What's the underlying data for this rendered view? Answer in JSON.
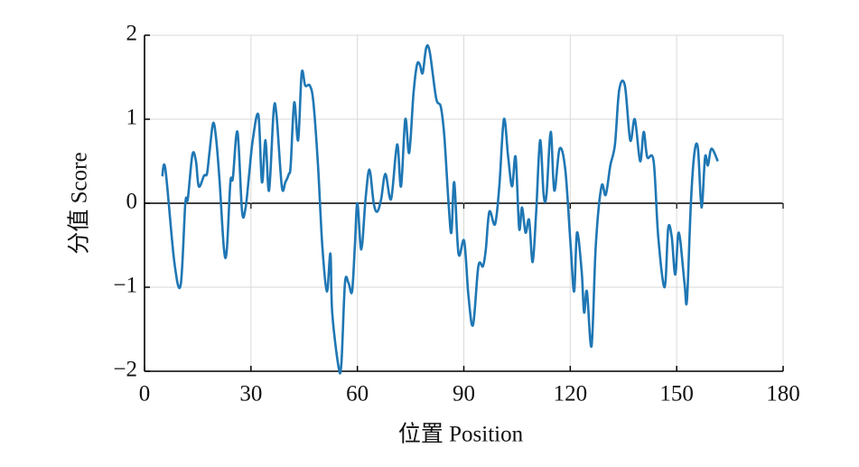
{
  "chart_data": {
    "type": "line",
    "x_label": "位置 Position",
    "y_label": "分值 Score",
    "x": [
      5,
      5.9,
      8.4,
      10.2,
      11.5,
      12.2,
      13.5,
      14.5,
      15.3,
      16.8,
      17.6,
      18.3,
      19.3,
      20.1,
      21.1,
      22.4,
      23.2,
      24.2,
      24.9,
      26.2,
      27.5,
      28.5,
      29.5,
      30.5,
      32.1,
      33.1,
      34.1,
      35.1,
      36.4,
      37.2,
      38.7,
      39.7,
      40.7,
      41.2,
      42.2,
      43.3,
      44.3,
      45.3,
      46.6,
      47.6,
      48.9,
      50.1,
      51.4,
      52.4,
      52.9,
      54.7,
      55.5,
      56.5,
      57.5,
      58.5,
      59.3,
      60,
      61.1,
      62.3,
      63.4,
      64.6,
      65.6,
      66.7,
      67.9,
      69.5,
      71.2,
      72.3,
      73.5,
      74.6,
      75.8,
      76.8,
      77.6,
      78.4,
      79.4,
      80.4,
      82.2,
      83.5,
      84.5,
      85.7,
      86.5,
      87.3,
      88.5,
      90.1,
      91.3,
      92.6,
      94.1,
      95.4,
      96.2,
      97.2,
      98.8,
      100,
      101.3,
      102.5,
      103.6,
      104.6,
      105.6,
      106.4,
      107.4,
      108.4,
      109.4,
      110.4,
      111.5,
      112.5,
      113.3,
      114.5,
      115.5,
      117,
      118.6,
      120.1,
      121.1,
      121.9,
      123.2,
      123.9,
      124.7,
      126,
      127.2,
      128.8,
      130,
      131.3,
      132.6,
      133.8,
      135.4,
      136.9,
      138.2,
      139.7,
      140.7,
      141.7,
      143.5,
      144.8,
      146.6,
      147.6,
      148.6,
      149.6,
      150.6,
      152.2,
      152.9,
      154,
      155,
      156,
      157,
      158,
      158.8,
      159.8,
      161.6
    ],
    "series": [
      {
        "name": "Score",
        "color": "#1f77b4",
        "values": [
          0.32,
          0.4,
          -0.7,
          -0.97,
          0,
          0.05,
          0.58,
          0.5,
          0.2,
          0.33,
          0.35,
          0.6,
          0.95,
          0.8,
          0.3,
          -0.55,
          -0.55,
          0.25,
          0.3,
          0.85,
          -0.1,
          -0.05,
          0.35,
          0.75,
          1.05,
          0.25,
          0.75,
          0.15,
          1.1,
          1.05,
          0.2,
          0.25,
          0.35,
          0.45,
          1.2,
          0.75,
          1.55,
          1.4,
          1.4,
          1.2,
          0.45,
          -0.5,
          -1.05,
          -0.6,
          -1.3,
          -1.95,
          -1.9,
          -0.95,
          -0.95,
          -1.05,
          -0.5,
          0,
          -0.55,
          0.05,
          0.4,
          0,
          -0.1,
          0.05,
          0.35,
          0.05,
          0.7,
          0.2,
          1.0,
          0.6,
          1.3,
          1.65,
          1.65,
          1.55,
          1.85,
          1.8,
          1.25,
          1.15,
          0.8,
          0,
          -0.35,
          0.25,
          -0.6,
          -0.45,
          -1.1,
          -1.45,
          -0.75,
          -0.75,
          -0.55,
          -0.1,
          -0.25,
          0.2,
          1.0,
          0.55,
          0.2,
          0.55,
          -0.3,
          -0.05,
          -0.35,
          -0.2,
          -0.7,
          -0.1,
          0.75,
          0.1,
          0.1,
          0.85,
          0.15,
          0.65,
          0.4,
          -0.5,
          -1.05,
          -0.35,
          -0.8,
          -1.3,
          -1.05,
          -1.7,
          -0.5,
          0.2,
          0.1,
          0.45,
          0.7,
          1.35,
          1.4,
          0.75,
          1.0,
          0.5,
          0.85,
          0.55,
          0.5,
          -0.4,
          -1.0,
          -0.3,
          -0.4,
          -0.85,
          -0.35,
          -0.95,
          -1.15,
          0,
          0.6,
          0.65,
          -0.05,
          0.55,
          0.45,
          0.65,
          0.5
        ]
      }
    ],
    "xlim": [
      0,
      180
    ],
    "xticks": [
      0,
      30,
      60,
      90,
      120,
      150,
      180
    ],
    "ylim": [
      -2,
      2
    ],
    "yticks": [
      {
        "value": -2,
        "label": "−2"
      },
      {
        "value": -1,
        "label": "−1"
      },
      0,
      1,
      2
    ],
    "grid": true
  }
}
